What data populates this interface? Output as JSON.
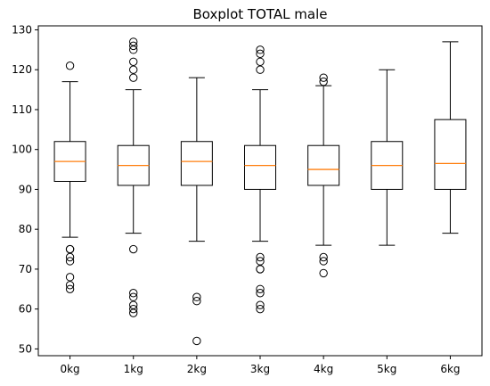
{
  "chart_data": {
    "type": "boxplot",
    "title": "Boxplot TOTAL male",
    "xlabel": "",
    "ylabel": "",
    "ylim": [
      48.3,
      131
    ],
    "yticks": [
      50,
      60,
      70,
      80,
      90,
      100,
      110,
      120,
      130
    ],
    "categories": [
      "0kg",
      "1kg",
      "2kg",
      "3kg",
      "4kg",
      "5kg",
      "6kg"
    ],
    "box_color": "#000000",
    "median_color": "#ff7f0e",
    "boxes": [
      {
        "label": "0kg",
        "whisker_low": 78,
        "q1": 92,
        "median": 97,
        "q3": 102,
        "whisker_high": 117,
        "outliers": [
          121,
          75,
          75,
          73,
          72,
          68,
          66,
          65
        ]
      },
      {
        "label": "1kg",
        "whisker_low": 79,
        "q1": 91,
        "median": 96,
        "q3": 101,
        "whisker_high": 115,
        "outliers": [
          127,
          126,
          125,
          122,
          120,
          118,
          75,
          64,
          63,
          61,
          60,
          59
        ]
      },
      {
        "label": "2kg",
        "whisker_low": 77,
        "q1": 91,
        "median": 97,
        "q3": 102,
        "whisker_high": 118,
        "outliers": [
          63,
          62,
          52
        ]
      },
      {
        "label": "3kg",
        "whisker_low": 77,
        "q1": 90,
        "median": 96,
        "q3": 101,
        "whisker_high": 115,
        "outliers": [
          125,
          124,
          122,
          120,
          73,
          72,
          70,
          70,
          65,
          64,
          61,
          60
        ]
      },
      {
        "label": "4kg",
        "whisker_low": 76,
        "q1": 91,
        "median": 95,
        "q3": 101,
        "whisker_high": 116,
        "outliers": [
          118,
          117,
          73,
          72,
          69
        ]
      },
      {
        "label": "5kg",
        "whisker_low": 76,
        "q1": 90,
        "median": 96,
        "q3": 102,
        "whisker_high": 120,
        "outliers": []
      },
      {
        "label": "6kg",
        "whisker_low": 79,
        "q1": 90,
        "median": 96.5,
        "q3": 107.5,
        "whisker_high": 127,
        "outliers": []
      }
    ]
  }
}
